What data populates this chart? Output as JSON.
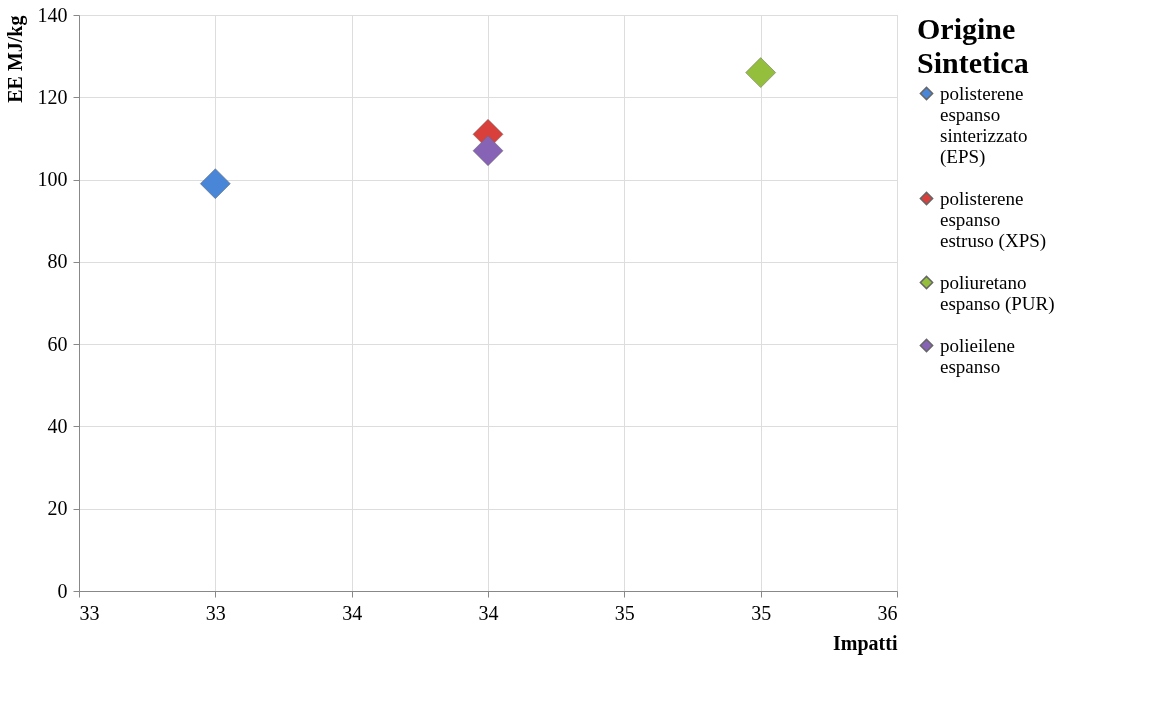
{
  "chart_data": {
    "type": "scatter",
    "xlabel": "Impatti",
    "ylabel": "EE  MJ/kg",
    "legend_title": "Origine Sintetica",
    "xlim": [
      32.5,
      35.5
    ],
    "xticks": [
      {
        "value": 32.5,
        "label": "33"
      },
      {
        "value": 33,
        "label": "33"
      },
      {
        "value": 33.5,
        "label": "34"
      },
      {
        "value": 34,
        "label": "34"
      },
      {
        "value": 34.5,
        "label": "35"
      },
      {
        "value": 35,
        "label": "35"
      },
      {
        "value": 35.5,
        "label": "36"
      }
    ],
    "ylim": [
      0,
      140
    ],
    "yticks": [
      0,
      20,
      40,
      60,
      80,
      100,
      120,
      140
    ],
    "grid": true,
    "legend": "right",
    "marker": "diamond",
    "series": [
      {
        "name": "polisterene espanso sinterizzato (EPS)",
        "color": "#4a86d8",
        "x": [
          33
        ],
        "values": [
          99
        ]
      },
      {
        "name": "polisterene espanso estruso (XPS)",
        "color": "#d9403c",
        "x": [
          34
        ],
        "values": [
          111
        ]
      },
      {
        "name": "poliuretano espanso (PUR)",
        "color": "#93bf3c",
        "x": [
          35
        ],
        "values": [
          126
        ]
      },
      {
        "name": "polieilene espanso",
        "color": "#8763b5",
        "x": [
          34
        ],
        "values": [
          107
        ]
      }
    ]
  }
}
